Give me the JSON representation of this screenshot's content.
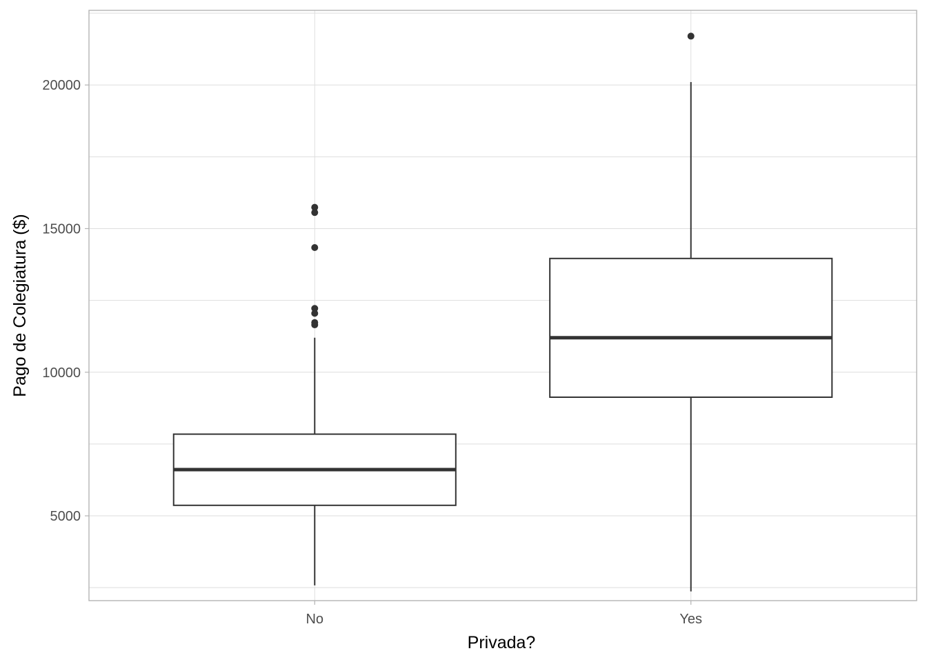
{
  "chart_data": {
    "type": "boxplot",
    "title": "",
    "xlabel": "Privada?",
    "ylabel": "Pago de Colegiatura ($)",
    "categories": [
      "No",
      "Yes"
    ],
    "ylim": [
      2048,
      22598
    ],
    "y_ticks": [
      5000,
      10000,
      15000,
      20000
    ],
    "y_tick_labels": [
      "5000",
      "10000",
      "15000",
      "20000"
    ],
    "grid": true,
    "legend": "none",
    "boxes": [
      {
        "category": "No",
        "min": 2580,
        "q1": 5366,
        "median": 6609,
        "q3": 7844,
        "max": 11200,
        "outliers": [
          11650,
          11730,
          12050,
          12220,
          14340,
          15560,
          15740
        ]
      },
      {
        "category": "Yes",
        "min": 2370,
        "q1": 9130,
        "median": 11200,
        "q3": 13960,
        "max": 20100,
        "outliers": [
          21700
        ]
      }
    ],
    "colors": {
      "background": "#FFFFFF",
      "grid": "#DEDEDE",
      "panel_border": "#B3B3B3",
      "box_line": "#333333",
      "outlier": "#333333",
      "tick_text": "#4D4D4D",
      "axis_title": "#000000"
    }
  }
}
